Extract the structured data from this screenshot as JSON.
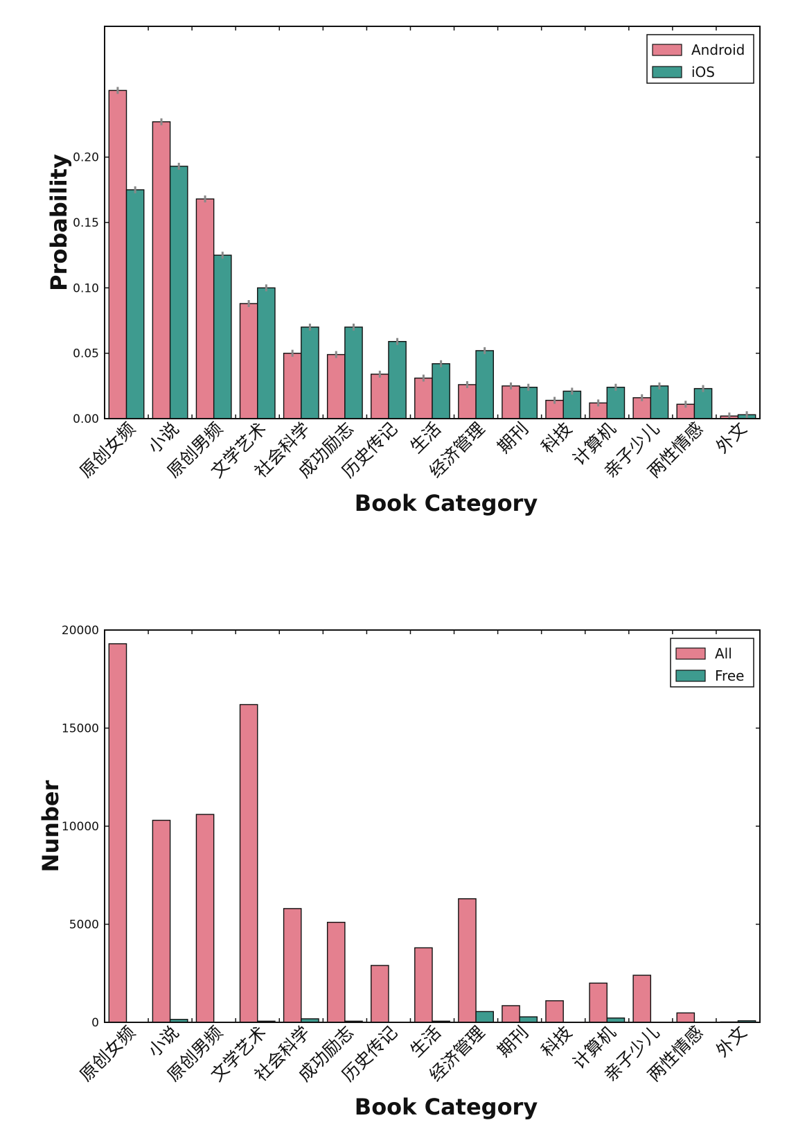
{
  "colors": {
    "series_a": "#e4808f",
    "series_b": "#3e9b8f",
    "err": "#888888"
  },
  "chart_data": [
    {
      "type": "bar",
      "categories": [
        "原创女频",
        "小说",
        "原创男频",
        "文学艺术",
        "社会科学",
        "成功励志",
        "历史传记",
        "生活",
        "经济管理",
        "期刊",
        "科技",
        "计算机",
        "亲子少儿",
        "两性情感",
        "外文"
      ],
      "series": [
        {
          "name": "Android",
          "values": [
            0.251,
            0.227,
            0.168,
            0.088,
            0.05,
            0.049,
            0.034,
            0.031,
            0.026,
            0.025,
            0.014,
            0.012,
            0.016,
            0.011,
            0.002
          ]
        },
        {
          "name": "iOS",
          "values": [
            0.175,
            0.193,
            0.125,
            0.1,
            0.07,
            0.07,
            0.059,
            0.042,
            0.052,
            0.024,
            0.021,
            0.024,
            0.025,
            0.023,
            0.003
          ]
        }
      ],
      "xlabel": "Book Category",
      "ylabel": "Probability",
      "ylim": [
        0,
        0.3
      ],
      "yticks": [
        0.0,
        0.05,
        0.1,
        0.15,
        0.2
      ],
      "ytick_labels": [
        "0.00",
        "0.05",
        "0.10",
        "0.15",
        "0.20"
      ],
      "error_bars": true,
      "legend_position": "top-right"
    },
    {
      "type": "bar",
      "categories": [
        "原创女频",
        "小说",
        "原创男频",
        "文学艺术",
        "社会科学",
        "成功励志",
        "历史传记",
        "生活",
        "经济管理",
        "期刊",
        "科技",
        "计算机",
        "亲子少儿",
        "两性情感",
        "外文"
      ],
      "series": [
        {
          "name": "All",
          "values": [
            19300,
            10300,
            10600,
            16200,
            5800,
            5100,
            2900,
            3800,
            6300,
            850,
            1100,
            2000,
            2400,
            480,
            20
          ]
        },
        {
          "name": "Free",
          "values": [
            0,
            150,
            0,
            60,
            180,
            60,
            0,
            60,
            550,
            280,
            0,
            220,
            0,
            0,
            80
          ]
        }
      ],
      "xlabel": "Book Category",
      "ylabel": "Nunber",
      "ylim": [
        0,
        20000
      ],
      "yticks": [
        0,
        5000,
        10000,
        15000,
        20000
      ],
      "ytick_labels": [
        "0",
        "5000",
        "10000",
        "15000",
        "20000"
      ],
      "error_bars": false,
      "legend_position": "top-right"
    }
  ]
}
